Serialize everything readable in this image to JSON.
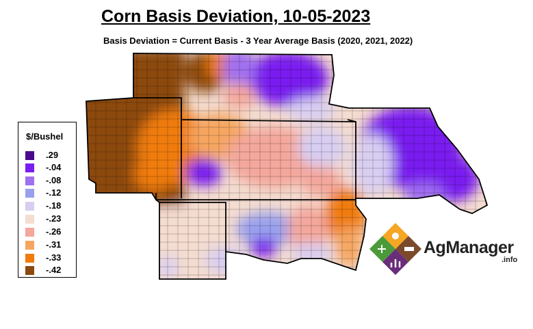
{
  "title": "Corn Basis Deviation, 10-05-2023",
  "subtitle": "Basis Deviation = Current Basis - 3 Year Average Basis (2020, 2021, 2022)",
  "legend": {
    "title": "$/Bushel",
    "items": [
      {
        "label": ".29",
        "color": "#4b0a8c"
      },
      {
        "label": "-.04",
        "color": "#7a1ef0"
      },
      {
        "label": "-.08",
        "color": "#a070f0"
      },
      {
        "label": "-.12",
        "color": "#9aa0ee"
      },
      {
        "label": "-.18",
        "color": "#d8cef2"
      },
      {
        "label": "-.23",
        "color": "#f4dcd0"
      },
      {
        "label": "-.26",
        "color": "#f4a79c"
      },
      {
        "label": "-.31",
        "color": "#f6a660"
      },
      {
        "label": "-.33",
        "color": "#f07c0c"
      },
      {
        "label": "-.42",
        "color": "#8c4a10"
      }
    ]
  },
  "brand": {
    "name": "AgManager",
    "suffix": ".info"
  }
}
